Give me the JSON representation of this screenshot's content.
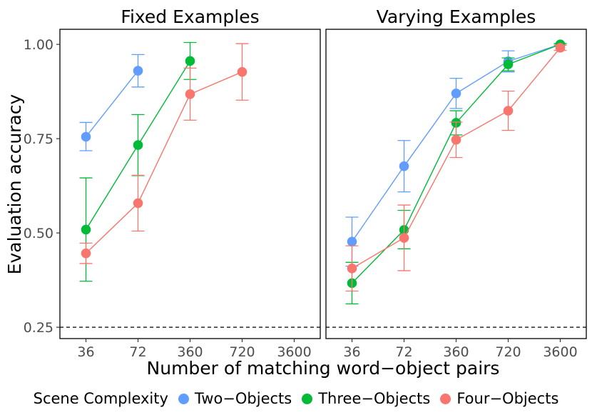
{
  "chart_data": {
    "type": "line",
    "xlabel": "Number of matching word−object pairs",
    "ylabel": "Evaluation accuracy",
    "ylim": [
      0.22,
      1.04
    ],
    "yticks": [
      "0.25",
      "0.50",
      "0.75",
      "1.00"
    ],
    "categories": [
      "36",
      "72",
      "360",
      "720",
      "3600"
    ],
    "reference_line": {
      "y": 0.25,
      "style": "dashed"
    },
    "grid": false,
    "legend": {
      "title": "Scene Complexity",
      "placement": "bottom",
      "entries": [
        "Two−Objects",
        "Three−Objects",
        "Four−Objects"
      ]
    },
    "colors": {
      "Two−Objects": "#619CFF",
      "Three−Objects": "#00BA38",
      "Four−Objects": "#F8766D"
    },
    "panels": [
      {
        "title": "Fixed Examples",
        "series": [
          {
            "name": "Two−Objects",
            "points": [
              {
                "x": "36",
                "y": 0.755,
                "lo": 0.718,
                "hi": 0.793
              },
              {
                "x": "72",
                "y": 0.93,
                "lo": 0.887,
                "hi": 0.973
              }
            ]
          },
          {
            "name": "Three−Objects",
            "points": [
              {
                "x": "36",
                "y": 0.509,
                "lo": 0.372,
                "hi": 0.646
              },
              {
                "x": "72",
                "y": 0.733,
                "lo": 0.652,
                "hi": 0.814
              },
              {
                "x": "360",
                "y": 0.956,
                "lo": 0.907,
                "hi": 1.005
              }
            ]
          },
          {
            "name": "Four−Objects",
            "points": [
              {
                "x": "36",
                "y": 0.446,
                "lo": 0.419,
                "hi": 0.473
              },
              {
                "x": "72",
                "y": 0.579,
                "lo": 0.505,
                "hi": 0.653
              },
              {
                "x": "360",
                "y": 0.868,
                "lo": 0.799,
                "hi": 0.937
              },
              {
                "x": "720",
                "y": 0.927,
                "lo": 0.852,
                "hi": 1.002
              }
            ]
          }
        ]
      },
      {
        "title": "Varying Examples",
        "series": [
          {
            "name": "Two−Objects",
            "points": [
              {
                "x": "36",
                "y": 0.477,
                "lo": 0.412,
                "hi": 0.542
              },
              {
                "x": "72",
                "y": 0.677,
                "lo": 0.609,
                "hi": 0.745
              },
              {
                "x": "360",
                "y": 0.87,
                "lo": 0.83,
                "hi": 0.91
              },
              {
                "x": "720",
                "y": 0.955,
                "lo": 0.927,
                "hi": 0.983
              },
              {
                "x": "3600",
                "y": 1.0,
                "lo": 0.998,
                "hi": 1.002
              }
            ]
          },
          {
            "name": "Three−Objects",
            "points": [
              {
                "x": "36",
                "y": 0.367,
                "lo": 0.312,
                "hi": 0.422
              },
              {
                "x": "72",
                "y": 0.508,
                "lo": 0.458,
                "hi": 0.56
              },
              {
                "x": "360",
                "y": 0.792,
                "lo": 0.76,
                "hi": 0.824
              },
              {
                "x": "720",
                "y": 0.947,
                "lo": 0.93,
                "hi": 0.964
              },
              {
                "x": "3600",
                "y": 1.0,
                "lo": 0.998,
                "hi": 1.002
              }
            ]
          },
          {
            "name": "Four−Objects",
            "points": [
              {
                "x": "36",
                "y": 0.406,
                "lo": 0.346,
                "hi": 0.466
              },
              {
                "x": "72",
                "y": 0.487,
                "lo": 0.4,
                "hi": 0.574
              },
              {
                "x": "360",
                "y": 0.747,
                "lo": 0.7,
                "hi": 0.794
              },
              {
                "x": "720",
                "y": 0.824,
                "lo": 0.772,
                "hi": 0.876
              },
              {
                "x": "3600",
                "y": 0.991,
                "lo": 0.984,
                "hi": 0.998
              }
            ]
          }
        ]
      }
    ]
  }
}
